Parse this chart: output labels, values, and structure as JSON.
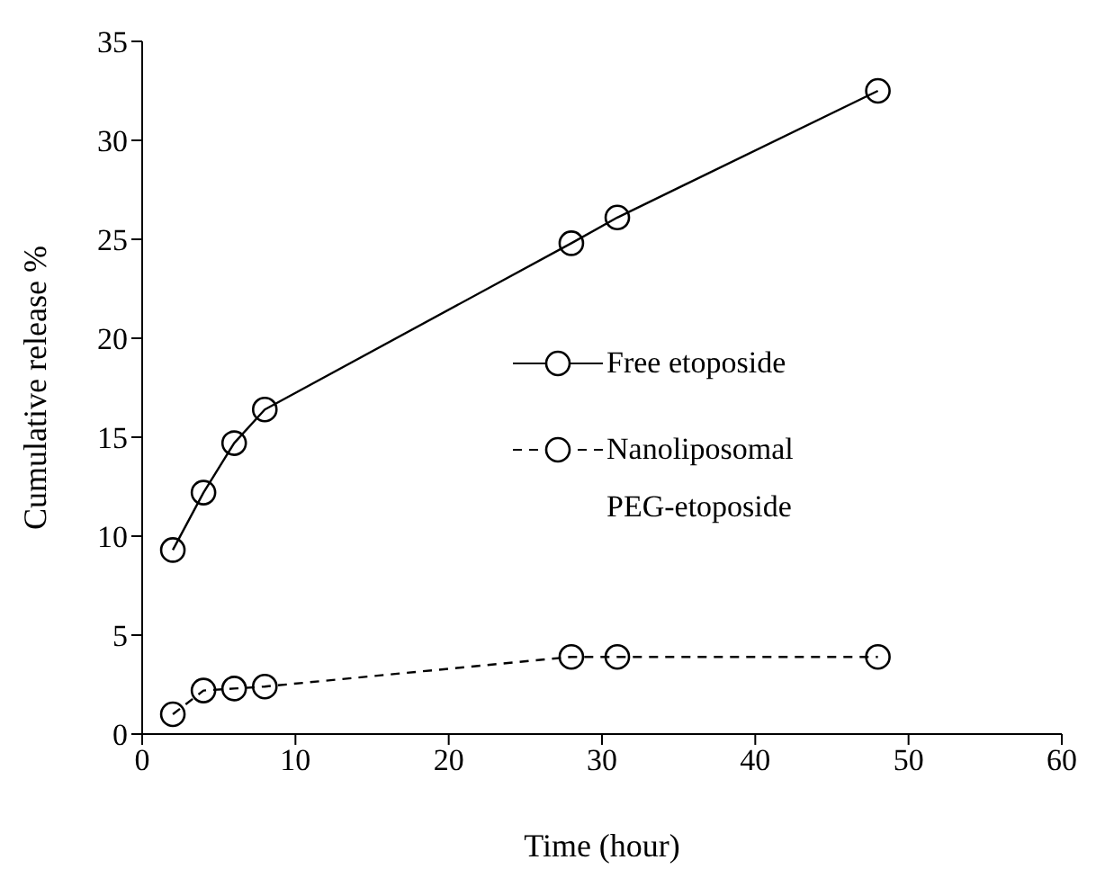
{
  "chart_data": {
    "type": "line",
    "xlabel": "Time (hour)",
    "ylabel": "Cumulative release %",
    "xlim": [
      0,
      60
    ],
    "xticks": [
      0,
      10,
      20,
      30,
      40,
      50,
      60
    ],
    "ylim": [
      0,
      35
    ],
    "yticks": [
      0,
      5,
      10,
      15,
      20,
      25,
      30,
      35
    ],
    "grid": false,
    "legend": "right",
    "marker": "circle",
    "series": [
      {
        "name": "Free etoposide",
        "color": "#000000",
        "line_style": "solid",
        "x": [
          2,
          4,
          6,
          8,
          28,
          31,
          48
        ],
        "values": [
          9.3,
          12.2,
          14.7,
          16.4,
          24.8,
          26.1,
          32.5
        ]
      },
      {
        "name": "Nanoliposomal PEG-etoposide",
        "color": "#000000",
        "line_style": "dashed",
        "x": [
          2,
          4,
          6,
          8,
          28,
          31,
          48
        ],
        "values": [
          1.0,
          2.2,
          2.3,
          2.4,
          3.9,
          3.9,
          3.9
        ]
      }
    ]
  }
}
